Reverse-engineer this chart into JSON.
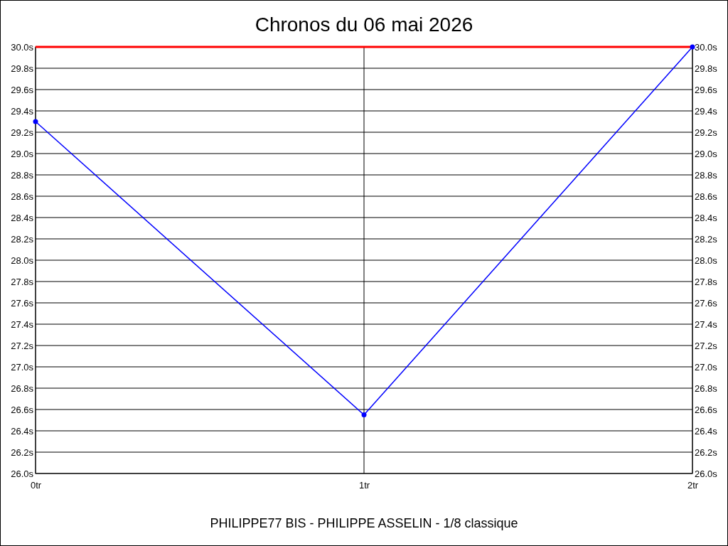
{
  "chart_data": {
    "type": "line",
    "title": "Chronos du 06 mai 2026",
    "annotations": [
      "PHILIPPE77 BIS - PHILIPPE ASSELIN - 1/8 classique"
    ],
    "x": [
      0,
      1,
      2
    ],
    "series": [
      {
        "color": "#0000ff",
        "values": [
          29.3,
          26.55,
          30.0
        ]
      }
    ],
    "xlim": [
      0,
      2
    ],
    "xticks": [
      {
        "value": 0,
        "label": "0tr"
      },
      {
        "value": 1,
        "label": "1tr"
      },
      {
        "value": 2,
        "label": "2tr"
      }
    ],
    "ylim": [
      26.0,
      30.0
    ],
    "yticks": [
      {
        "value": 26.0,
        "label": "26.0s"
      },
      {
        "value": 26.2,
        "label": "26.2s"
      },
      {
        "value": 26.4,
        "label": "26.4s"
      },
      {
        "value": 26.6,
        "label": "26.6s"
      },
      {
        "value": 26.8,
        "label": "26.8s"
      },
      {
        "value": 27.0,
        "label": "27.0s"
      },
      {
        "value": 27.2,
        "label": "27.2s"
      },
      {
        "value": 27.4,
        "label": "27.4s"
      },
      {
        "value": 27.6,
        "label": "27.6s"
      },
      {
        "value": 27.8,
        "label": "27.8s"
      },
      {
        "value": 28.0,
        "label": "28.0s"
      },
      {
        "value": 28.2,
        "label": "28.2s"
      },
      {
        "value": 28.4,
        "label": "28.4s"
      },
      {
        "value": 28.6,
        "label": "28.6s"
      },
      {
        "value": 28.8,
        "label": "28.8s"
      },
      {
        "value": 29.0,
        "label": "29.0s"
      },
      {
        "value": 29.2,
        "label": "29.2s"
      },
      {
        "value": 29.4,
        "label": "29.4s"
      },
      {
        "value": 29.6,
        "label": "29.6s"
      },
      {
        "value": 29.8,
        "label": "29.8s"
      },
      {
        "value": 30.0,
        "label": "30.0s"
      }
    ],
    "y2lim": [
      26.0,
      30.0
    ],
    "y2ticks": [
      {
        "value": 26.0,
        "label": "26.0s"
      },
      {
        "value": 26.2,
        "label": "26.2s"
      },
      {
        "value": 26.4,
        "label": "26.4s"
      },
      {
        "value": 26.6,
        "label": "26.6s"
      },
      {
        "value": 26.8,
        "label": "26.8s"
      },
      {
        "value": 27.0,
        "label": "27.0s"
      },
      {
        "value": 27.2,
        "label": "27.2s"
      },
      {
        "value": 27.4,
        "label": "27.4s"
      },
      {
        "value": 27.6,
        "label": "27.6s"
      },
      {
        "value": 27.8,
        "label": "27.8s"
      },
      {
        "value": 28.0,
        "label": "28.0s"
      },
      {
        "value": 28.2,
        "label": "28.2s"
      },
      {
        "value": 28.4,
        "label": "28.4s"
      },
      {
        "value": 28.6,
        "label": "28.6s"
      },
      {
        "value": 28.8,
        "label": "28.8s"
      },
      {
        "value": 29.0,
        "label": "29.0s"
      },
      {
        "value": 29.2,
        "label": "29.2s"
      },
      {
        "value": 29.4,
        "label": "29.4s"
      },
      {
        "value": 29.6,
        "label": "29.6s"
      },
      {
        "value": 29.8,
        "label": "29.8s"
      },
      {
        "value": 30.0,
        "label": "30.0s"
      }
    ],
    "ref_lines": [
      {
        "axis": "y",
        "value": 30.0,
        "color": "#ff0000"
      }
    ],
    "grid": true,
    "marker": "circle",
    "line_style": "solid"
  }
}
